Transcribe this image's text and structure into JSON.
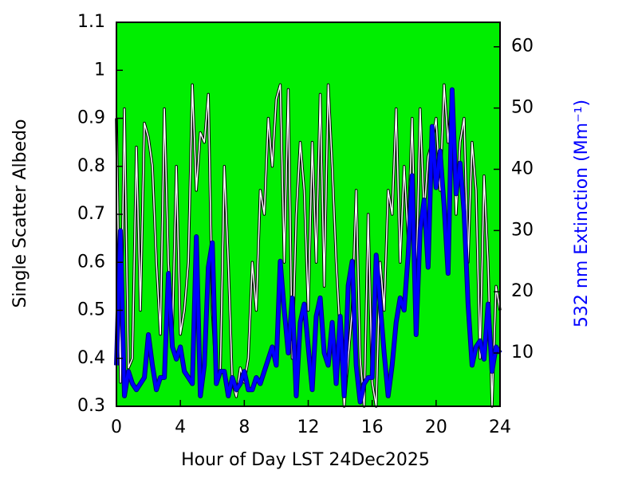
{
  "chart_data": {
    "type": "line",
    "xlabel": "Hour of Day LST 24Dec2025",
    "ylabel": "Single Scatter Albedo",
    "y2label": "532 nm Extinction (Mm⁻¹)",
    "y2label_color": "#0000ff",
    "background": "#00ee00",
    "xlim": [
      0,
      24
    ],
    "xticks": [
      0,
      4,
      8,
      12,
      16,
      20,
      24
    ],
    "ylim": [
      0.3,
      1.1
    ],
    "yticks": [
      0.3,
      0.4,
      0.5,
      0.6,
      0.7,
      0.8,
      0.9,
      1,
      1.1
    ],
    "y2lim": [
      1.3,
      64
    ],
    "y2ticks": [
      10,
      20,
      30,
      40,
      50,
      60
    ],
    "x": [
      0,
      0.25,
      0.5,
      0.75,
      1,
      1.25,
      1.5,
      1.75,
      2,
      2.25,
      2.5,
      2.75,
      3,
      3.25,
      3.5,
      3.75,
      4,
      4.25,
      4.5,
      4.75,
      5,
      5.25,
      5.5,
      5.75,
      6,
      6.25,
      6.5,
      6.75,
      7,
      7.25,
      7.5,
      7.75,
      8,
      8.25,
      8.5,
      8.75,
      9,
      9.25,
      9.5,
      9.75,
      10,
      10.25,
      10.5,
      10.75,
      11,
      11.25,
      11.5,
      11.75,
      12,
      12.25,
      12.5,
      12.75,
      13,
      13.25,
      13.5,
      13.75,
      14,
      14.25,
      14.5,
      14.75,
      15,
      15.25,
      15.5,
      15.75,
      16,
      16.25,
      16.5,
      16.75,
      17,
      17.25,
      17.5,
      17.75,
      18,
      18.25,
      18.5,
      18.75,
      19,
      19.25,
      19.5,
      19.75,
      20,
      20.25,
      20.5,
      20.75,
      21,
      21.25,
      21.5,
      21.75,
      22,
      22.25,
      22.5,
      22.75,
      23,
      23.25,
      23.5,
      23.75,
      24
    ],
    "series": [
      {
        "color": "#ffffff",
        "outline": "#000000",
        "axis": "y",
        "values": [
          0.9,
          0.35,
          0.92,
          0.38,
          0.4,
          0.84,
          0.5,
          0.89,
          0.86,
          0.8,
          0.6,
          0.45,
          0.92,
          0.6,
          0.45,
          0.8,
          0.45,
          0.5,
          0.6,
          0.97,
          0.75,
          0.87,
          0.85,
          0.95,
          0.5,
          0.35,
          0.37,
          0.8,
          0.6,
          0.35,
          0.32,
          0.38,
          0.35,
          0.4,
          0.6,
          0.5,
          0.75,
          0.7,
          0.9,
          0.8,
          0.94,
          0.97,
          0.6,
          0.96,
          0.4,
          0.7,
          0.85,
          0.75,
          0.5,
          0.85,
          0.6,
          0.95,
          0.55,
          0.97,
          0.8,
          0.6,
          0.45,
          0.3,
          0.4,
          0.5,
          0.75,
          0.4,
          0.3,
          0.7,
          0.35,
          0.3,
          0.6,
          0.5,
          0.75,
          0.7,
          0.92,
          0.6,
          0.8,
          0.65,
          0.9,
          0.55,
          0.92,
          0.7,
          0.82,
          0.85,
          0.9,
          0.75,
          0.97,
          0.85,
          0.95,
          0.7,
          0.85,
          0.9,
          0.6,
          0.85,
          0.75,
          0.4,
          0.78,
          0.6,
          0.3,
          0.55,
          0.5
        ]
      },
      {
        "color": "#0000ff",
        "outline": "#000080",
        "axis": "y2",
        "values": [
          8,
          30,
          3,
          7,
          5,
          4,
          5,
          6,
          13,
          8,
          4,
          6,
          6,
          23,
          11,
          9,
          11,
          7,
          6,
          5,
          29,
          3,
          8,
          24,
          28,
          5,
          7,
          7,
          3,
          6,
          4,
          5,
          7,
          4,
          4,
          6,
          5,
          7,
          9,
          11,
          8,
          25,
          17,
          10,
          19,
          3,
          15,
          18,
          11,
          4,
          16,
          19,
          10,
          8,
          15,
          5,
          16,
          3,
          21,
          25,
          8,
          2,
          5,
          6,
          6,
          26,
          18,
          10,
          3,
          8,
          15,
          19,
          17,
          26,
          39,
          13,
          30,
          35,
          24,
          47,
          37,
          43,
          34,
          23,
          53,
          36,
          41,
          33,
          18,
          8,
          11,
          12,
          9,
          18,
          7,
          11,
          10
        ]
      }
    ]
  }
}
